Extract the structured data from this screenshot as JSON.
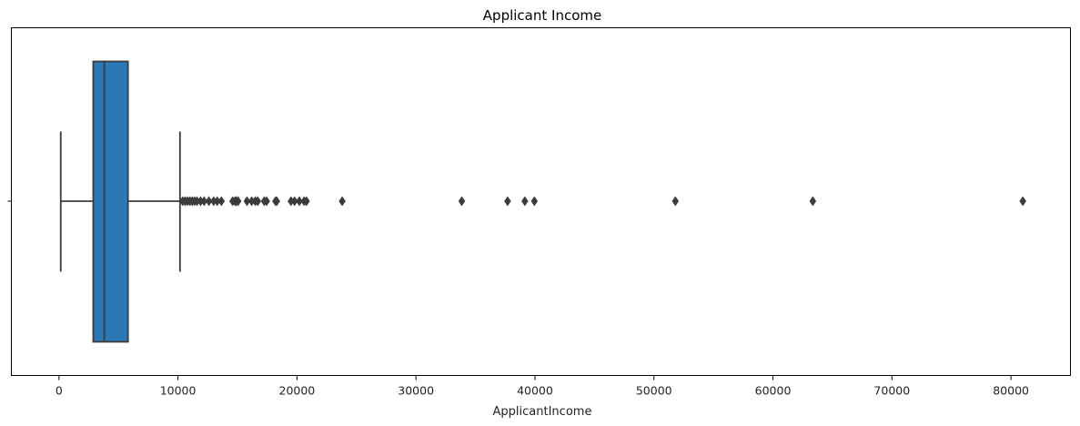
{
  "chart_data": {
    "type": "box",
    "title": "Applicant Income",
    "xlabel": "ApplicantIncome",
    "ylabel": "",
    "xlim": [
      -4000,
      85000
    ],
    "xticks": [
      0,
      10000,
      20000,
      30000,
      40000,
      50000,
      60000,
      70000,
      80000
    ],
    "xtick_labels": [
      "0",
      "10000",
      "20000",
      "30000",
      "40000",
      "50000",
      "60000",
      "70000",
      "80000"
    ],
    "grid": false,
    "box_color": "#2a78b5",
    "line_color": "#3c3c3c",
    "box": {
      "whisker_low": 150,
      "q1": 2880,
      "median": 3810,
      "q3": 5800,
      "whisker_high": 10170
    },
    "outliers": [
      10400,
      10600,
      10800,
      11000,
      11200,
      11400,
      11600,
      11900,
      12200,
      12600,
      13000,
      13300,
      13650,
      14600,
      14800,
      14900,
      15050,
      15800,
      16200,
      16500,
      16700,
      17250,
      17450,
      18200,
      18300,
      19500,
      19800,
      20200,
      20600,
      20800,
      23800,
      33850,
      37700,
      39150,
      39950,
      51800,
      63350,
      81000
    ]
  }
}
